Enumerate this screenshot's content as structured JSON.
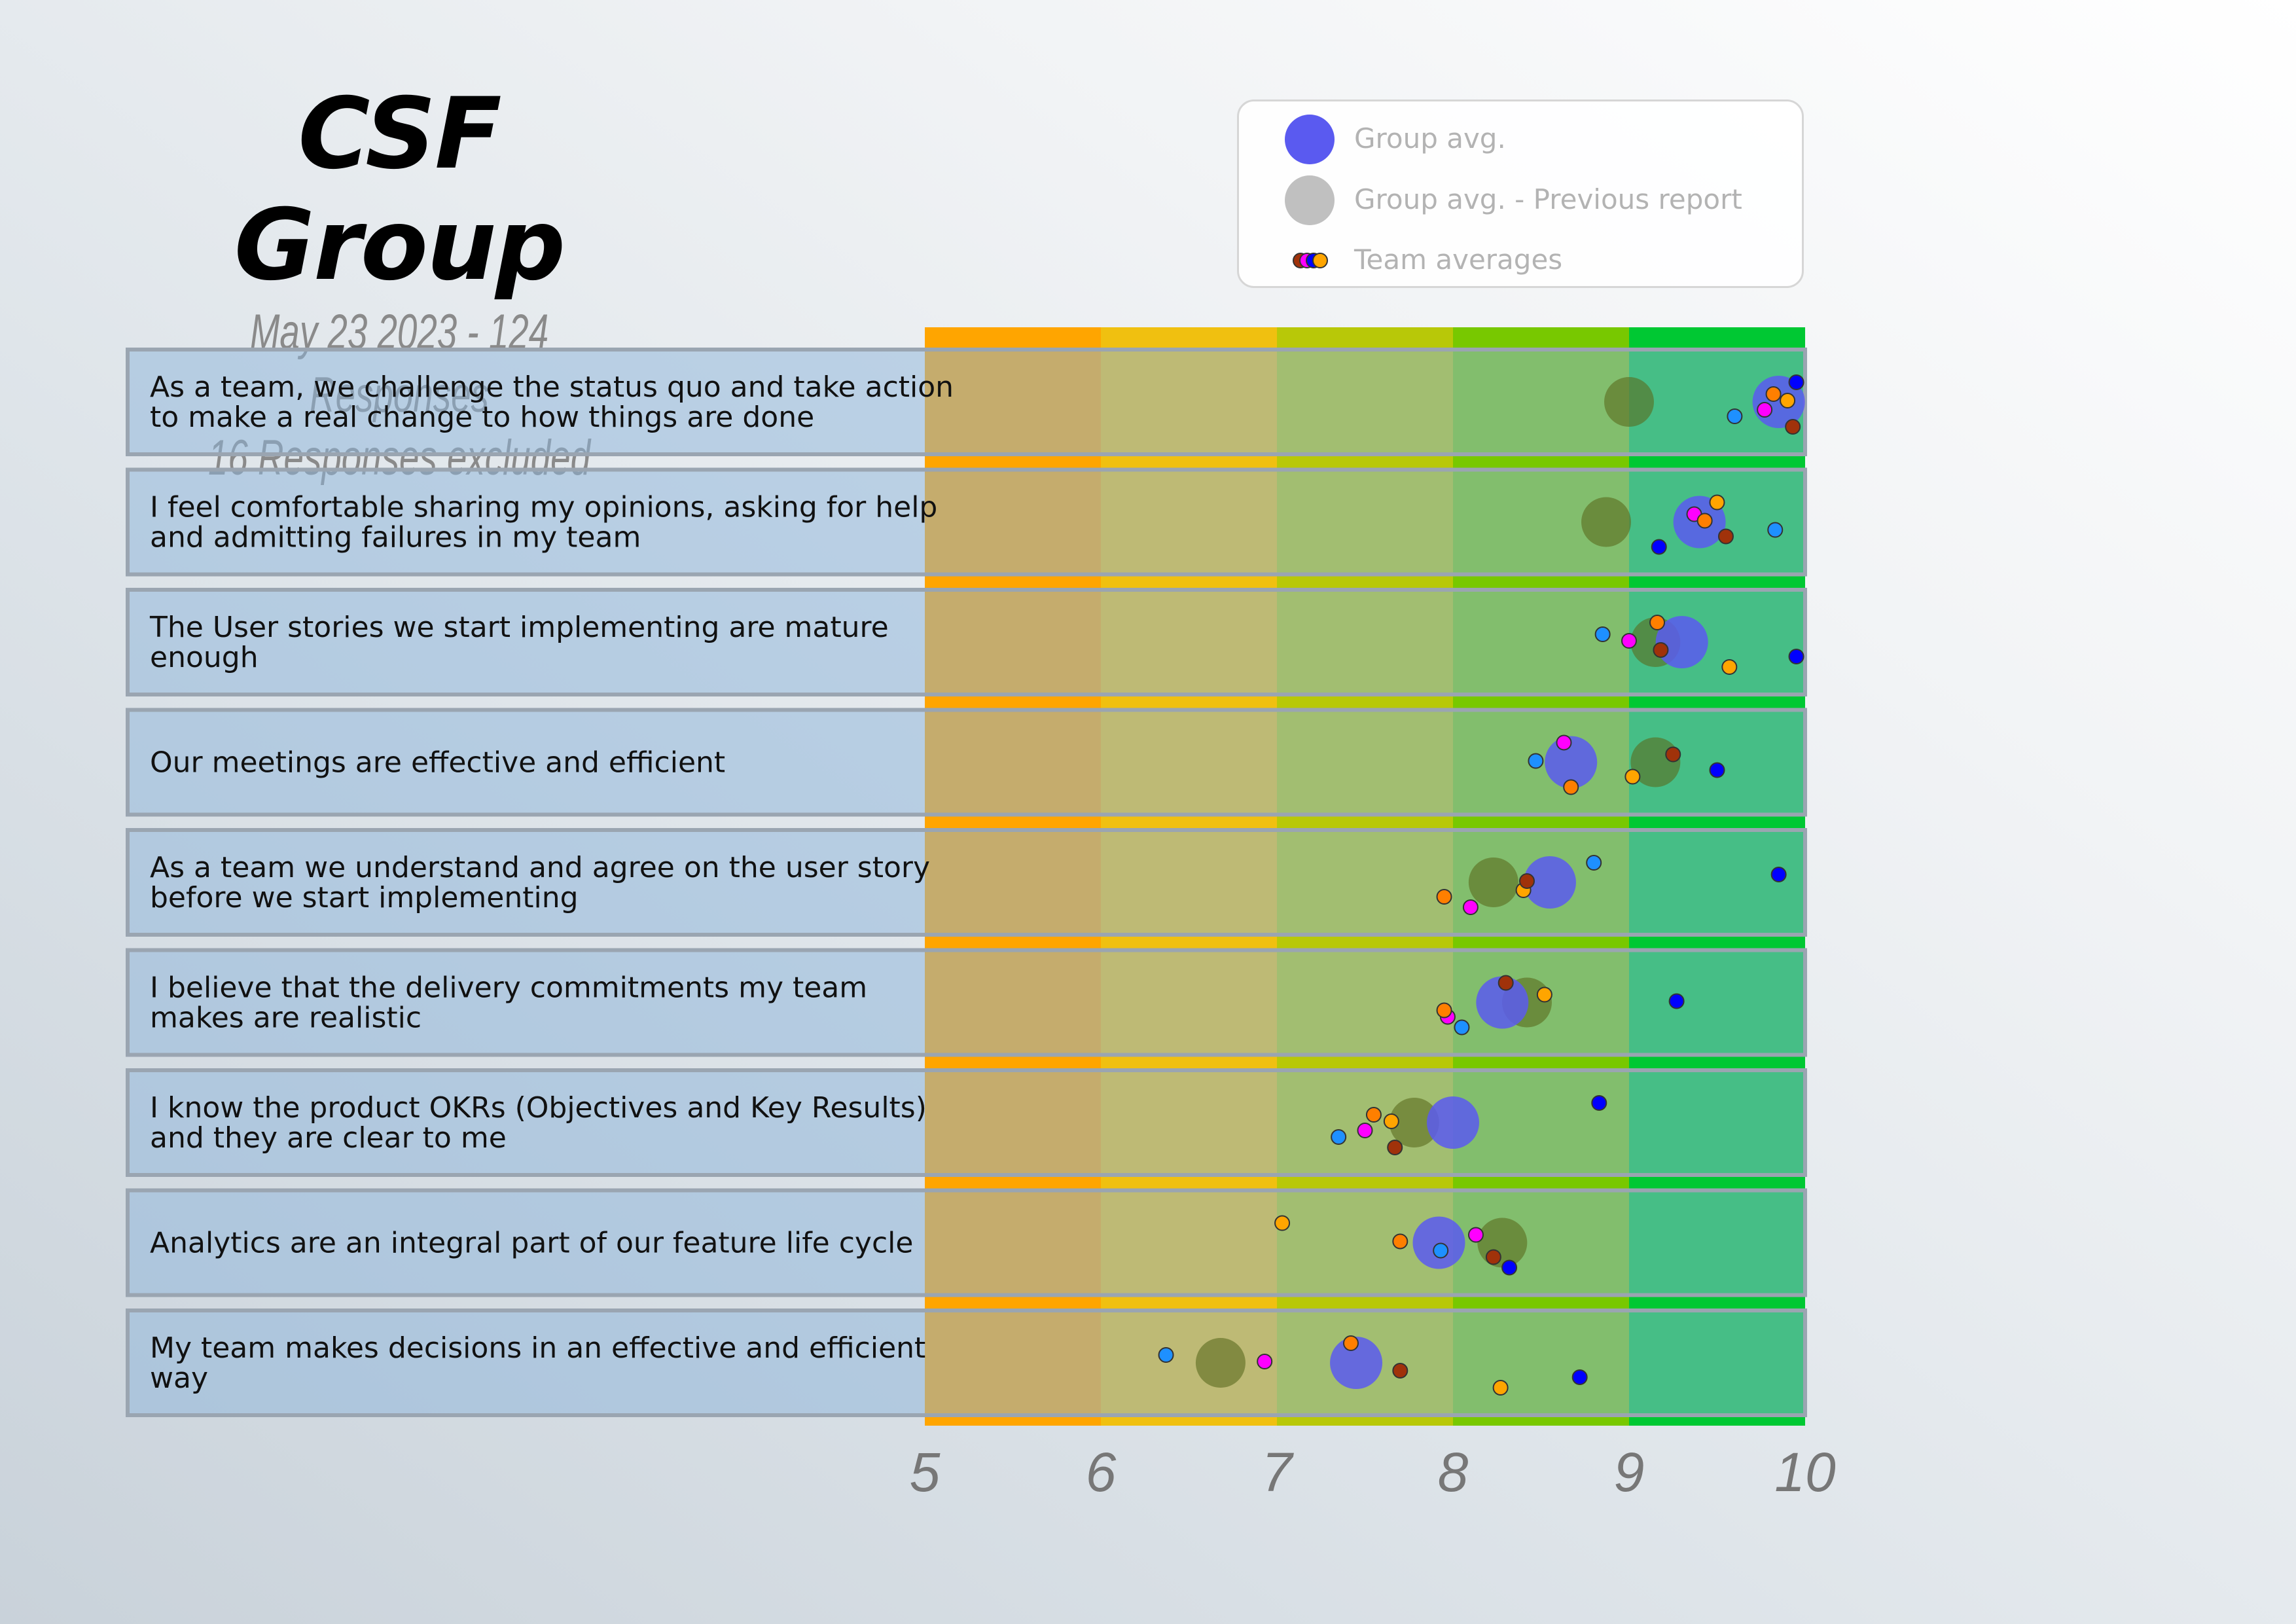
{
  "header": {
    "title": "CSF Group",
    "subtitle": "May 23 2023 - 124 Responses",
    "excluded": "16 Responses excluded"
  },
  "legend": {
    "group_avg": "Group avg.",
    "group_avg_prev": "Group avg. - Previous report",
    "team_avgs": "Team averages"
  },
  "colors": {
    "group_avg": "#5a5af0",
    "group_avg_prev": "#5a6b1e",
    "bands": [
      "#ffa500",
      "#f0c010",
      "#b8c808",
      "#78c800",
      "#00c833"
    ],
    "teams": [
      "#1e90ff",
      "#ff00ff",
      "#ff7f00",
      "#ffa500",
      "#0000ff",
      "#a0320a"
    ]
  },
  "chart_data": {
    "type": "scatter",
    "xlim": [
      5,
      10
    ],
    "x_ticks": [
      "5",
      "6",
      "7",
      "8",
      "9",
      "10"
    ],
    "series_names": [
      "Group avg.",
      "Group avg. - Previous report",
      "Team averages"
    ],
    "questions": [
      {
        "label": [
          "As a team, we challenge the status quo and take action",
          "to make a real change to how things are done"
        ],
        "group_avg": 9.85,
        "prev_avg": 9.0,
        "teams": [
          9.6,
          9.77,
          9.82,
          9.9,
          9.95,
          9.93
        ]
      },
      {
        "label": [
          "I feel comfortable sharing my opinions, asking for help",
          "and admitting failures in my team"
        ],
        "group_avg": 9.4,
        "prev_avg": 8.87,
        "teams": [
          9.83,
          9.37,
          9.43,
          9.5,
          9.17,
          9.55
        ]
      },
      {
        "label": [
          "The User stories we start implementing are mature",
          "enough"
        ],
        "group_avg": 9.3,
        "prev_avg": 9.15,
        "teams": [
          8.85,
          9.0,
          9.16,
          9.57,
          9.95,
          9.18
        ]
      },
      {
        "label": [
          "Our meetings are effective and efficient"
        ],
        "group_avg": 8.67,
        "prev_avg": 9.15,
        "teams": [
          8.47,
          8.63,
          8.67,
          9.02,
          9.5,
          9.25
        ]
      },
      {
        "label": [
          "As a team we understand and agree on the user story",
          "before we start implementing"
        ],
        "group_avg": 8.55,
        "prev_avg": 8.23,
        "teams": [
          8.8,
          8.1,
          7.95,
          8.4,
          9.85,
          8.42
        ]
      },
      {
        "label": [
          "I believe that the delivery commitments my team",
          "makes are realistic"
        ],
        "group_avg": 8.28,
        "prev_avg": 8.42,
        "teams": [
          8.05,
          7.97,
          7.95,
          8.52,
          9.27,
          8.3
        ]
      },
      {
        "label": [
          "I know the product OKRs (Objectives and Key Results)",
          "and they are clear to me"
        ],
        "group_avg": 8.0,
        "prev_avg": 7.78,
        "teams": [
          7.35,
          7.5,
          7.55,
          7.65,
          8.83,
          7.67
        ]
      },
      {
        "label": [
          "Analytics are an integral part of our feature life cycle"
        ],
        "group_avg": 7.92,
        "prev_avg": 8.28,
        "teams": [
          7.93,
          8.13,
          7.7,
          7.03,
          8.32,
          8.23
        ]
      },
      {
        "label": [
          "My team makes decisions in an effective and efficient",
          "way"
        ],
        "group_avg": 7.45,
        "prev_avg": 6.68,
        "teams": [
          6.37,
          6.93,
          7.42,
          8.27,
          8.72,
          7.7
        ]
      }
    ]
  }
}
